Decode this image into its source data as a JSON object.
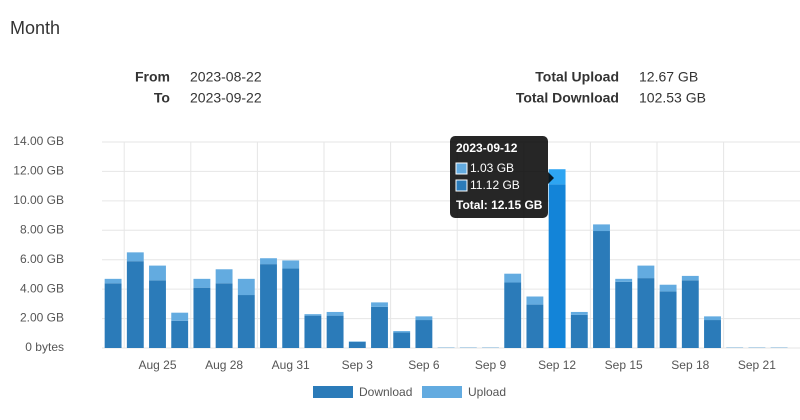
{
  "header": {
    "title": "Month",
    "from_label": "From",
    "from": "2023-08-22",
    "to_label": "To",
    "to": "2023-09-22",
    "upload_label": "Total Upload",
    "upload": "12.67 GB",
    "download_label": "Total Download",
    "download": "102.53 GB"
  },
  "chart_data": {
    "type": "stacked_bar",
    "categories": [
      null,
      null,
      "Aug 25",
      null,
      null,
      "Aug 28",
      null,
      null,
      "Aug 31",
      null,
      null,
      "Sep 3",
      null,
      null,
      "Sep 6",
      null,
      null,
      "Sep 9",
      null,
      null,
      "Sep 12",
      null,
      null,
      "Sep 15",
      null,
      null,
      "Sep 18",
      null,
      null,
      "Sep 21",
      null
    ],
    "series": [
      {
        "name": "Download",
        "color": "#2b7bb9",
        "values": [
          4.4,
          5.9,
          4.6,
          1.85,
          4.1,
          4.4,
          3.6,
          5.7,
          5.4,
          2.2,
          2.2,
          0.42,
          2.8,
          1.05,
          1.9,
          0.02,
          0.02,
          0.02,
          4.45,
          2.95,
          11.12,
          2.25,
          7.95,
          4.5,
          4.75,
          3.85,
          4.6,
          1.9,
          0.02,
          0.02,
          0.02
        ]
      },
      {
        "name": "Upload",
        "color": "#63abe0",
        "values": [
          0.3,
          0.6,
          1.0,
          0.55,
          0.6,
          0.95,
          1.1,
          0.4,
          0.55,
          0.1,
          0.25,
          0.03,
          0.3,
          0.1,
          0.25,
          0.01,
          0.01,
          0.01,
          0.6,
          0.55,
          1.03,
          0.2,
          0.45,
          0.2,
          0.85,
          0.45,
          0.3,
          0.25,
          0.01,
          0.01,
          0.01
        ]
      }
    ],
    "ylim": [
      0,
      14
    ],
    "yticks": [
      {
        "value": 0,
        "label": "0 bytes"
      },
      {
        "value": 2,
        "label": "2.00 GB"
      },
      {
        "value": 4,
        "label": "4.00 GB"
      },
      {
        "value": 6,
        "label": "6.00 GB"
      },
      {
        "value": 8,
        "label": "8.00 GB"
      },
      {
        "value": 10,
        "label": "10.00 GB"
      },
      {
        "value": 12,
        "label": "12.00 GB"
      },
      {
        "value": 14,
        "label": "14.00 GB"
      }
    ],
    "grid": true,
    "legend": "bottom",
    "tooltip": {
      "title": "2023-09-12",
      "upload": "1.03 GB",
      "download": "11.12 GB",
      "total": "Total: 12.15 GB"
    }
  }
}
